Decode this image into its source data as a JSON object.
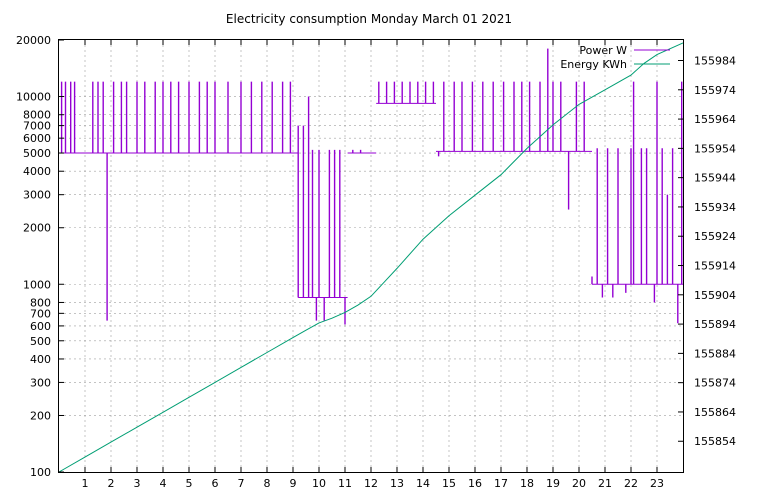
{
  "chart_data": {
    "type": "line",
    "title": "Electricity consumption Monday March 01 2021",
    "xlabel": "",
    "ylabel": "",
    "y2label": "",
    "grid": true,
    "legend_position": "top-right",
    "xlim": [
      0,
      24
    ],
    "x_ticks": [
      "1",
      "2",
      "3",
      "4",
      "5",
      "6",
      "7",
      "8",
      "9",
      "10",
      "11",
      "12",
      "13",
      "14",
      "15",
      "16",
      "17",
      "18",
      "19",
      "20",
      "21",
      "22",
      "23"
    ],
    "y_scale": "log",
    "ylim": [
      100,
      20000
    ],
    "y_ticks": [
      {
        "v": 100,
        "label": "100"
      },
      {
        "v": 200,
        "label": "200"
      },
      {
        "v": 300,
        "label": "300"
      },
      {
        "v": 400,
        "label": "400"
      },
      {
        "v": 500,
        "label": "500"
      },
      {
        "v": 600,
        "label": "600"
      },
      {
        "v": 700,
        "label": "700"
      },
      {
        "v": 800,
        "label": "800"
      },
      {
        "v": 1000,
        "label": "1000"
      },
      {
        "v": 2000,
        "label": "2000"
      },
      {
        "v": 3000,
        "label": "3000"
      },
      {
        "v": 4000,
        "label": "4000"
      },
      {
        "v": 5000,
        "label": "5000"
      },
      {
        "v": 6000,
        "label": "6000"
      },
      {
        "v": 7000,
        "label": "7000"
      },
      {
        "v": 8000,
        "label": "8000"
      },
      {
        "v": 10000,
        "label": "10000"
      },
      {
        "v": 20000,
        "label": "20000"
      }
    ],
    "y2lim": [
      155843.5,
      155991
    ],
    "y2_ticks": [
      "155854",
      "155864",
      "155874",
      "155884",
      "155894",
      "155904",
      "155914",
      "155924",
      "155934",
      "155944",
      "155954",
      "155964",
      "155974",
      "155984"
    ],
    "colors": {
      "power": "#9400d3",
      "energy": "#009e73"
    },
    "series": [
      {
        "name": "Power W",
        "axis": "y",
        "base_levels": [
          {
            "from": 0,
            "to": 9.2,
            "value": 5000
          },
          {
            "from": 9.2,
            "to": 11.1,
            "value": 850
          },
          {
            "from": 11.1,
            "to": 12.2,
            "value": 5000
          },
          {
            "from": 12.2,
            "to": 14.5,
            "value": 9200
          },
          {
            "from": 14.5,
            "to": 18.6,
            "value": 5100
          },
          {
            "from": 18.6,
            "to": 20.5,
            "value": 5100
          },
          {
            "from": 20.5,
            "to": 24,
            "value": 1000
          }
        ],
        "spikes": [
          {
            "x": 0.1,
            "value": 12000
          },
          {
            "x": 0.25,
            "value": 12000
          },
          {
            "x": 0.45,
            "value": 12000
          },
          {
            "x": 0.6,
            "value": 12000
          },
          {
            "x": 1.3,
            "value": 12000
          },
          {
            "x": 1.5,
            "value": 12000
          },
          {
            "x": 1.7,
            "value": 12000
          },
          {
            "x": 1.85,
            "value": 640
          },
          {
            "x": 2.1,
            "value": 12000
          },
          {
            "x": 2.4,
            "value": 12000
          },
          {
            "x": 2.6,
            "value": 12000
          },
          {
            "x": 3.0,
            "value": 12000
          },
          {
            "x": 3.3,
            "value": 12000
          },
          {
            "x": 3.7,
            "value": 12000
          },
          {
            "x": 4.0,
            "value": 12000
          },
          {
            "x": 4.3,
            "value": 12000
          },
          {
            "x": 4.6,
            "value": 12000
          },
          {
            "x": 5.0,
            "value": 12000
          },
          {
            "x": 5.4,
            "value": 12000
          },
          {
            "x": 5.7,
            "value": 12000
          },
          {
            "x": 6.0,
            "value": 12000
          },
          {
            "x": 6.5,
            "value": 12000
          },
          {
            "x": 7.0,
            "value": 12000
          },
          {
            "x": 7.4,
            "value": 12000
          },
          {
            "x": 7.8,
            "value": 12000
          },
          {
            "x": 8.2,
            "value": 12000
          },
          {
            "x": 8.6,
            "value": 12000
          },
          {
            "x": 8.9,
            "value": 12000
          },
          {
            "x": 9.2,
            "value": 7000
          },
          {
            "x": 9.4,
            "value": 7000
          },
          {
            "x": 9.6,
            "value": 10000
          },
          {
            "x": 9.75,
            "value": 5200
          },
          {
            "x": 9.9,
            "value": 640
          },
          {
            "x": 10.0,
            "value": 5200
          },
          {
            "x": 10.2,
            "value": 640
          },
          {
            "x": 10.4,
            "value": 5200
          },
          {
            "x": 10.6,
            "value": 5200
          },
          {
            "x": 10.8,
            "value": 5200
          },
          {
            "x": 11.0,
            "value": 610
          },
          {
            "x": 11.3,
            "value": 5200
          },
          {
            "x": 11.6,
            "value": 5200
          },
          {
            "x": 12.3,
            "value": 12000
          },
          {
            "x": 12.6,
            "value": 12000
          },
          {
            "x": 12.9,
            "value": 12000
          },
          {
            "x": 13.2,
            "value": 12000
          },
          {
            "x": 13.5,
            "value": 12000
          },
          {
            "x": 13.8,
            "value": 12000
          },
          {
            "x": 14.1,
            "value": 12000
          },
          {
            "x": 14.4,
            "value": 12000
          },
          {
            "x": 14.6,
            "value": 4800
          },
          {
            "x": 14.8,
            "value": 12000
          },
          {
            "x": 15.2,
            "value": 12000
          },
          {
            "x": 15.5,
            "value": 12000
          },
          {
            "x": 15.9,
            "value": 12000
          },
          {
            "x": 16.3,
            "value": 12000
          },
          {
            "x": 16.7,
            "value": 12000
          },
          {
            "x": 17.1,
            "value": 12000
          },
          {
            "x": 17.5,
            "value": 12000
          },
          {
            "x": 17.8,
            "value": 12000
          },
          {
            "x": 18.1,
            "value": 12000
          },
          {
            "x": 18.5,
            "value": 12000
          },
          {
            "x": 18.8,
            "value": 18000
          },
          {
            "x": 19.0,
            "value": 12000
          },
          {
            "x": 19.3,
            "value": 12000
          },
          {
            "x": 19.6,
            "value": 2500
          },
          {
            "x": 19.9,
            "value": 12000
          },
          {
            "x": 20.2,
            "value": 12000
          },
          {
            "x": 20.5,
            "value": 1100
          },
          {
            "x": 20.7,
            "value": 5300
          },
          {
            "x": 20.9,
            "value": 850
          },
          {
            "x": 21.1,
            "value": 5300
          },
          {
            "x": 21.3,
            "value": 850
          },
          {
            "x": 21.5,
            "value": 5300
          },
          {
            "x": 21.8,
            "value": 900
          },
          {
            "x": 22.0,
            "value": 5300
          },
          {
            "x": 22.1,
            "value": 12000
          },
          {
            "x": 22.4,
            "value": 5300
          },
          {
            "x": 22.6,
            "value": 5300
          },
          {
            "x": 22.9,
            "value": 800
          },
          {
            "x": 23.0,
            "value": 12000
          },
          {
            "x": 23.2,
            "value": 5300
          },
          {
            "x": 23.4,
            "value": 3000
          },
          {
            "x": 23.6,
            "value": 5300
          },
          {
            "x": 23.8,
            "value": 620
          },
          {
            "x": 23.95,
            "value": 12000
          }
        ]
      },
      {
        "name": "Energy KWh",
        "axis": "y2",
        "x": [
          0,
          1,
          2,
          3,
          4,
          5,
          6,
          7,
          8,
          9,
          9.5,
          10,
          10.5,
          11,
          11.5,
          12,
          13,
          14,
          15,
          16,
          17,
          18,
          19,
          20,
          21,
          22,
          22.5,
          23,
          24
        ],
        "values": [
          155843.5,
          155848.6,
          155853.7,
          155858.8,
          155863.9,
          155869.0,
          155874.1,
          155879.2,
          155884.3,
          155889.4,
          155891.9,
          155894.4,
          155896.0,
          155898.0,
          155900.5,
          155903.5,
          155913.0,
          155923.0,
          155931.0,
          155938.0,
          155945.0,
          155954.0,
          155962.0,
          155969.0,
          155974.0,
          155979.0,
          155983.0,
          155986.0,
          155990.0
        ]
      }
    ]
  }
}
